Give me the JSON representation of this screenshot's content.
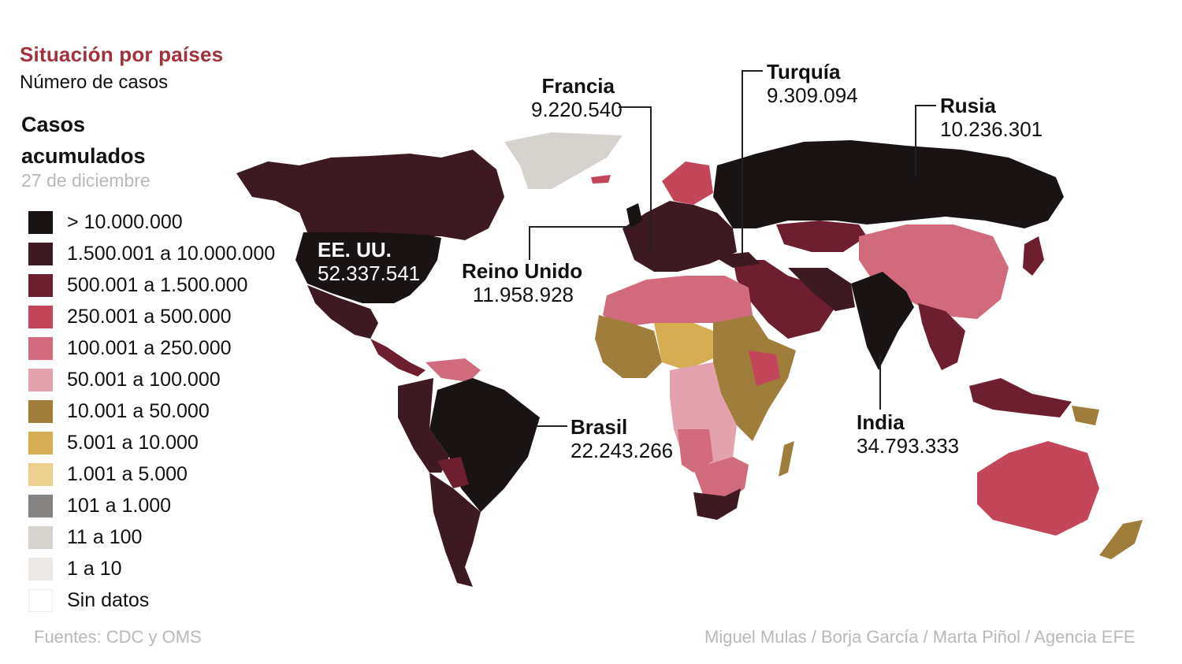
{
  "header": {
    "title": "Situación por países",
    "subtitle": "Número de casos"
  },
  "legend": {
    "title": "Casos acumulados",
    "date": "27 de diciembre",
    "items": [
      {
        "label": "> 10.000.000",
        "color": "#1a1314"
      },
      {
        "label": "1.500.001 a 10.000.000",
        "color": "#3d1921"
      },
      {
        "label": "500.001 a 1.500.000",
        "color": "#6e1f2f"
      },
      {
        "label": "250.001 a 500.000",
        "color": "#c4465a"
      },
      {
        "label": "100.001 a 250.000",
        "color": "#d16a7c"
      },
      {
        "label": "50.001 a 100.000",
        "color": "#e3a2ad"
      },
      {
        "label": "10.001 a 50.000",
        "color": "#a07d3a"
      },
      {
        "label": "5.001 a 10.000",
        "color": "#d6ad52"
      },
      {
        "label": "1.001 a 5.000",
        "color": "#ebcf8c"
      },
      {
        "label": "101 a 1.000",
        "color": "#858282"
      },
      {
        "label": "11 a 100",
        "color": "#d6d3cf"
      },
      {
        "label": "1 a 10",
        "color": "#ece8e5"
      },
      {
        "label": "Sin datos",
        "color": "#ffffff"
      }
    ]
  },
  "callouts": {
    "usa": {
      "name": "EE. UU.",
      "value": "52.337.541"
    },
    "france": {
      "name": "Francia",
      "value": "9.220.540"
    },
    "turkey": {
      "name": "Turquía",
      "value": "9.309.094"
    },
    "russia": {
      "name": "Rusia",
      "value": "10.236.301"
    },
    "uk": {
      "name": "Reino Unido",
      "value": "11.958.928"
    },
    "brazil": {
      "name": "Brasil",
      "value": "22.243.266"
    },
    "india": {
      "name": "India",
      "value": "34.793.333"
    }
  },
  "footer": {
    "sources": "Fuentes: CDC y OMS",
    "credits": "Miguel Mulas / Borja García / Marta Piñol / Agencia EFE"
  }
}
